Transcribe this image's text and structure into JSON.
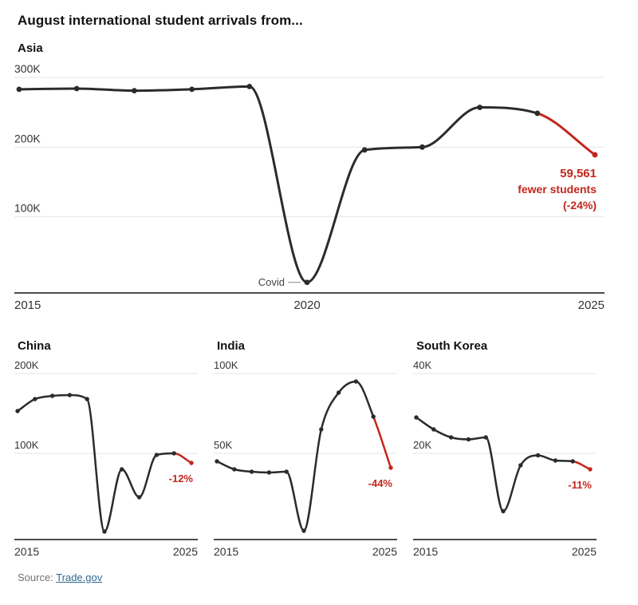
{
  "title": "August international student arrivals from...",
  "source": {
    "label": "Source: ",
    "link": "Trade.gov"
  },
  "colors": {
    "line": "#2b2b2b",
    "red": "#c4261d",
    "grid": "#e4e4e4",
    "axis": "#121212",
    "tick": "#333333",
    "annotation_gray": "#444444",
    "connector": "#888888"
  },
  "chart_data": [
    {
      "type": "line",
      "title": "Asia",
      "size": "large",
      "x": [
        2015,
        2016,
        2017,
        2018,
        2019,
        2020,
        2021,
        2022,
        2023,
        2024,
        2025
      ],
      "values": [
        283000,
        284000,
        281000,
        283000,
        287000,
        6000,
        196000,
        200000,
        257000,
        248561,
        189000
      ],
      "red_from_index": 9,
      "ylim": [
        0,
        300000
      ],
      "yticks": [
        {
          "v": 300000,
          "label": "300K"
        },
        {
          "v": 200000,
          "label": "200K"
        },
        {
          "v": 100000,
          "label": "100K"
        }
      ],
      "xticks": [
        {
          "v": 2015,
          "label": "2015"
        },
        {
          "v": 2020,
          "label": "2020"
        },
        {
          "v": 2025,
          "label": "2025"
        }
      ],
      "covid_annotation": {
        "index": 5,
        "label": "Covid"
      },
      "end_annotation": [
        "59,561",
        "fewer students",
        "(-24%)"
      ]
    },
    {
      "type": "line",
      "title": "China",
      "size": "small",
      "x": [
        2015,
        2016,
        2017,
        2018,
        2019,
        2020,
        2021,
        2022,
        2023,
        2024,
        2025
      ],
      "values": [
        153000,
        168000,
        172000,
        173000,
        168000,
        2000,
        80000,
        45000,
        98000,
        100000,
        88000
      ],
      "red_from_index": 9,
      "ylim": [
        0,
        200000
      ],
      "yticks": [
        {
          "v": 200000,
          "label": "200K"
        },
        {
          "v": 100000,
          "label": "100K"
        }
      ],
      "xticks": [
        {
          "v": 2015,
          "label": "2015"
        },
        {
          "v": 2025,
          "label": "2025"
        }
      ],
      "end_annotation": [
        "-12%"
      ]
    },
    {
      "type": "line",
      "title": "India",
      "size": "small",
      "x": [
        2015,
        2016,
        2017,
        2018,
        2019,
        2020,
        2021,
        2022,
        2023,
        2024,
        2025
      ],
      "values": [
        45000,
        40000,
        38500,
        38000,
        38500,
        1500,
        65000,
        88000,
        95000,
        73000,
        41000
      ],
      "red_from_index": 9,
      "ylim": [
        0,
        100000
      ],
      "yticks": [
        {
          "v": 100000,
          "label": "100K"
        },
        {
          "v": 50000,
          "label": "50K"
        }
      ],
      "xticks": [
        {
          "v": 2015,
          "label": "2015"
        },
        {
          "v": 2025,
          "label": "2025"
        }
      ],
      "end_annotation": [
        "-44%"
      ]
    },
    {
      "type": "line",
      "title": "South Korea",
      "size": "small",
      "x": [
        2015,
        2016,
        2017,
        2018,
        2019,
        2020,
        2021,
        2022,
        2023,
        2024,
        2025
      ],
      "values": [
        29000,
        26000,
        24000,
        23500,
        24000,
        5500,
        17000,
        19500,
        18200,
        18000,
        16000
      ],
      "red_from_index": 9,
      "ylim": [
        0,
        40000
      ],
      "yticks": [
        {
          "v": 40000,
          "label": "40K"
        },
        {
          "v": 20000,
          "label": "20K"
        }
      ],
      "xticks": [
        {
          "v": 2015,
          "label": "2015"
        },
        {
          "v": 2025,
          "label": "2025"
        }
      ],
      "end_annotation": [
        "-11%"
      ]
    }
  ]
}
